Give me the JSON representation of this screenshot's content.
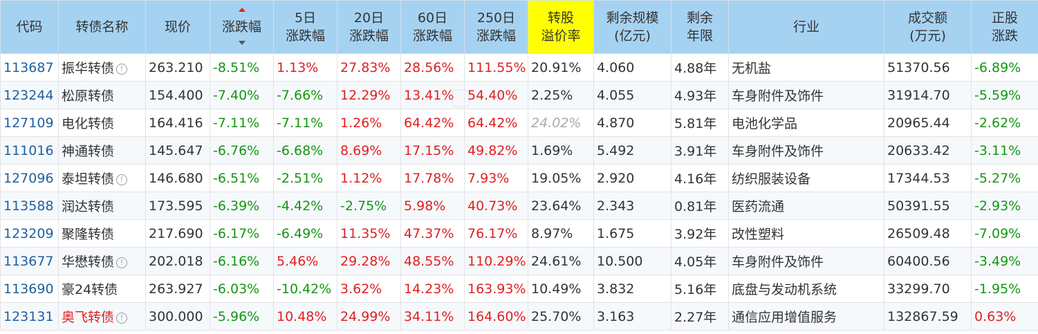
{
  "headers": {
    "code": "代码",
    "name": "转债名称",
    "price": "现价",
    "change": "涨跌幅",
    "d5_l1": "5日",
    "d5_l2": "涨跌幅",
    "d20_l1": "20日",
    "d20_l2": "涨跌幅",
    "d60_l1": "60日",
    "d60_l2": "涨跌幅",
    "d250_l1": "250日",
    "d250_l2": "涨跌幅",
    "premium_l1": "转股",
    "premium_l2": "溢价率",
    "scale_l1": "剩余规模",
    "scale_l2": "(亿元)",
    "years_l1": "剩余",
    "years_l2": "年限",
    "industry": "行业",
    "volume_l1": "成交额",
    "volume_l2": "(万元)",
    "stock_l1": "正股",
    "stock_l2": "涨跌"
  },
  "colors": {
    "header_bg": "#a6d2f2",
    "premium_header_bg": "#ffff00",
    "up": "#e02020",
    "down": "#149614",
    "code": "#1e5f9e"
  },
  "rows": [
    {
      "code": "113687",
      "name": "振华转债",
      "info": "!",
      "price": "263.210",
      "change": "-8.51%",
      "d5": "1.13%",
      "d20": "27.83%",
      "d60": "28.56%",
      "d250": "111.55%",
      "premium": "20.91%",
      "scale": "4.060",
      "years": "4.88年",
      "industry": "无机盐",
      "volume": "51370.56",
      "stock": "-6.89%"
    },
    {
      "code": "123244",
      "name": "松原转债",
      "price": "154.400",
      "change": "-7.40%",
      "d5": "-7.66%",
      "d20": "12.29%",
      "d60": "13.41%",
      "d250": "54.40%",
      "premium": "2.25%",
      "scale": "4.055",
      "years": "4.93年",
      "industry": "车身附件及饰件",
      "volume": "31914.70",
      "stock": "-5.59%"
    },
    {
      "code": "127109",
      "name": "电化转债",
      "price": "164.416",
      "change": "-7.11%",
      "d5": "-7.11%",
      "d20": "1.26%",
      "d60": "64.42%",
      "d250": "64.42%",
      "premium": "24.02%",
      "scale": "4.870",
      "years": "5.81年",
      "industry": "电池化学品",
      "volume": "20965.44",
      "stock": "-2.62%"
    },
    {
      "code": "111016",
      "name": "神通转债",
      "price": "145.647",
      "change": "-6.76%",
      "d5": "-6.68%",
      "d20": "8.69%",
      "d60": "17.15%",
      "d250": "49.82%",
      "premium": "1.69%",
      "scale": "5.492",
      "years": "3.91年",
      "industry": "车身附件及饰件",
      "volume": "20633.42",
      "stock": "-3.11%"
    },
    {
      "code": "127096",
      "name": "泰坦转债",
      "info": "!",
      "price": "146.680",
      "change": "-6.51%",
      "d5": "-2.51%",
      "d20": "1.12%",
      "d60": "17.78%",
      "d250": "7.93%",
      "premium": "19.05%",
      "scale": "2.920",
      "years": "4.16年",
      "industry": "纺织服装设备",
      "volume": "17344.53",
      "stock": "-5.27%"
    },
    {
      "code": "113588",
      "name": "润达转债",
      "price": "173.595",
      "change": "-6.39%",
      "d5": "-4.42%",
      "d20": "-2.75%",
      "d60": "5.98%",
      "d250": "40.73%",
      "premium": "23.64%",
      "scale": "2.343",
      "years": "0.81年",
      "industry": "医药流通",
      "volume": "50391.55",
      "stock": "-2.93%"
    },
    {
      "code": "123209",
      "name": "聚隆转债",
      "price": "217.690",
      "change": "-6.17%",
      "d5": "-6.49%",
      "d20": "11.35%",
      "d60": "47.37%",
      "d250": "76.17%",
      "premium": "8.97%",
      "scale": "1.675",
      "years": "3.92年",
      "industry": "改性塑料",
      "volume": "26509.48",
      "stock": "-7.09%"
    },
    {
      "code": "113677",
      "name": "华懋转债",
      "info": "!",
      "price": "202.018",
      "change": "-6.16%",
      "d5": "5.46%",
      "d20": "29.28%",
      "d60": "48.55%",
      "d250": "110.29%",
      "premium": "24.61%",
      "scale": "10.500",
      "years": "4.05年",
      "industry": "车身附件及饰件",
      "volume": "60400.56",
      "stock": "-3.49%"
    },
    {
      "code": "113690",
      "name": "豪24转债",
      "price": "263.927",
      "change": "-6.03%",
      "d5": "-10.42%",
      "d20": "3.62%",
      "d60": "14.23%",
      "d250": "163.93%",
      "premium": "10.49%",
      "scale": "3.832",
      "years": "5.16年",
      "industry": "底盘与发动机系统",
      "volume": "33299.70",
      "stock": "-1.95%"
    },
    {
      "code": "123131",
      "name": "奥飞转债",
      "info": "!",
      "price": "300.000",
      "change": "-5.96%",
      "d5": "10.48%",
      "d20": "24.99%",
      "d60": "34.11%",
      "d250": "164.60%",
      "premium": "25.70%",
      "scale": "3.163",
      "years": "2.27年",
      "industry": "通信应用增值服务",
      "volume": "132867.59",
      "stock": "0.63%"
    }
  ]
}
